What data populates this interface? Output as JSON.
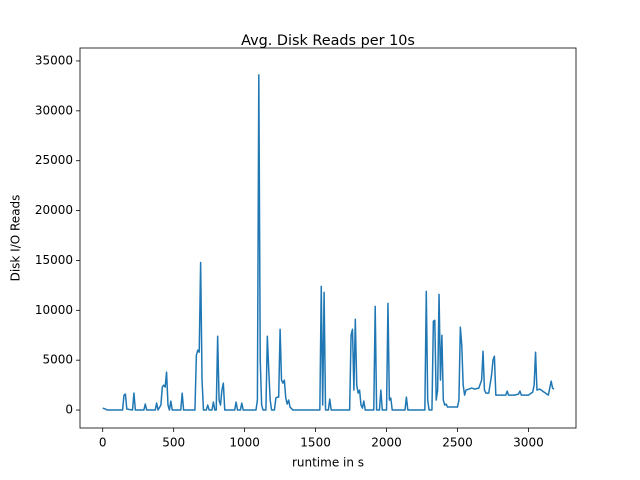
{
  "chart_data": {
    "type": "line",
    "title": "Avg. Disk Reads per 10s",
    "xlabel": "runtime in s",
    "ylabel": "Disk I/O Reads",
    "xlim": [
      -160,
      3335
    ],
    "ylim": [
      -1800,
      36300
    ],
    "xticks": [
      0,
      500,
      1000,
      1500,
      2000,
      2500,
      3000
    ],
    "yticks": [
      0,
      5000,
      10000,
      15000,
      20000,
      25000,
      30000,
      35000
    ],
    "series": [
      {
        "color": "#1f77b4",
        "x": [
          0,
          10,
          20,
          30,
          140,
          150,
          160,
          170,
          210,
          220,
          230,
          290,
          300,
          310,
          370,
          380,
          390,
          410,
          420,
          430,
          440,
          450,
          460,
          470,
          480,
          490,
          550,
          560,
          570,
          650,
          660,
          670,
          680,
          690,
          700,
          710,
          730,
          740,
          750,
          770,
          780,
          790,
          800,
          810,
          820,
          830,
          840,
          850,
          860,
          930,
          940,
          950,
          970,
          980,
          990,
          1080,
          1090,
          1100,
          1110,
          1120,
          1130,
          1150,
          1160,
          1170,
          1180,
          1190,
          1210,
          1220,
          1230,
          1240,
          1250,
          1260,
          1270,
          1280,
          1290,
          1300,
          1310,
          1320,
          1340,
          1530,
          1540,
          1550,
          1560,
          1570,
          1590,
          1600,
          1610,
          1740,
          1750,
          1760,
          1770,
          1780,
          1790,
          1800,
          1810,
          1820,
          1830,
          1840,
          1850,
          1910,
          1920,
          1930,
          1950,
          1960,
          1970,
          2000,
          2010,
          2020,
          2030,
          2040,
          2130,
          2140,
          2150,
          2270,
          2280,
          2290,
          2300,
          2320,
          2330,
          2340,
          2350,
          2360,
          2370,
          2380,
          2390,
          2400,
          2410,
          2420,
          2430,
          2440,
          2500,
          2510,
          2520,
          2530,
          2540,
          2550,
          2560,
          2580,
          2600,
          2620,
          2650,
          2670,
          2680,
          2690,
          2700,
          2720,
          2740,
          2750,
          2760,
          2770,
          2800,
          2840,
          2850,
          2860,
          2900,
          2930,
          2940,
          2950,
          3000,
          3030,
          3040,
          3050,
          3060,
          3080,
          3100,
          3120,
          3140,
          3160,
          3170,
          3180
        ],
        "values": [
          200,
          150,
          100,
          0,
          0,
          1500,
          1600,
          100,
          0,
          1700,
          0,
          0,
          600,
          0,
          0,
          700,
          0,
          500,
          2300,
          2500,
          2300,
          3800,
          500,
          0,
          900,
          0,
          0,
          1700,
          0,
          0,
          5500,
          6000,
          5800,
          14800,
          3000,
          0,
          0,
          500,
          0,
          0,
          800,
          0,
          0,
          7400,
          1000,
          500,
          2000,
          2700,
          0,
          0,
          800,
          0,
          0,
          700,
          0,
          0,
          1000,
          33600,
          5000,
          500,
          0,
          0,
          7400,
          4000,
          1000,
          0,
          0,
          1200,
          1300,
          1300,
          8100,
          3000,
          2700,
          3000,
          1200,
          600,
          1000,
          300,
          0,
          0,
          12400,
          500,
          11800,
          0,
          0,
          1100,
          0,
          0,
          7500,
          8100,
          2000,
          9100,
          2500,
          1700,
          2000,
          500,
          200,
          900,
          0,
          0,
          10400,
          0,
          0,
          2000,
          0,
          0,
          10700,
          1000,
          1200,
          0,
          0,
          1300,
          0,
          0,
          11900,
          1000,
          0,
          0,
          8900,
          9000,
          1000,
          2000,
          11600,
          3000,
          7500,
          1000,
          500,
          600,
          300,
          300,
          300,
          1000,
          8300,
          6500,
          2500,
          1500,
          2000,
          2100,
          2200,
          2100,
          2200,
          3000,
          5900,
          2000,
          1700,
          1700,
          3500,
          5000,
          5400,
          1500,
          1500,
          1500,
          1900,
          1500,
          1500,
          1600,
          1900,
          1500,
          1500,
          1800,
          2500,
          5800,
          2000,
          2100,
          1900,
          1700,
          1500,
          2900,
          2200,
          2100
        ]
      }
    ]
  }
}
